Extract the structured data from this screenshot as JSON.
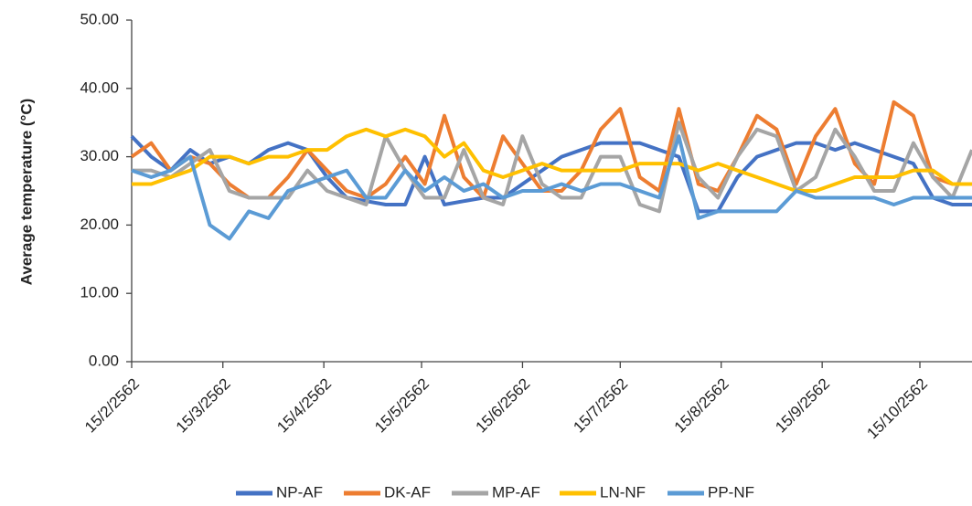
{
  "chart_data": {
    "type": "line",
    "y_label": "Average temperature (°C)",
    "x": [
      "15/2/2562",
      "21/2/2562",
      "27/2/2562",
      "5/3/2562",
      "11/3/2562",
      "17/3/2562",
      "23/3/2562",
      "29/3/2562",
      "4/4/2562",
      "10/4/2562",
      "16/4/2562",
      "22/4/2562",
      "28/4/2562",
      "4/5/2562",
      "10/5/2562",
      "16/5/2562",
      "22/5/2562",
      "28/5/2562",
      "3/6/2562",
      "9/6/2562",
      "15/6/2562",
      "21/6/2562",
      "27/6/2562",
      "3/7/2562",
      "9/7/2562",
      "15/7/2562",
      "21/7/2562",
      "27/7/2562",
      "2/8/2562",
      "8/8/2562",
      "14/8/2562",
      "20/8/2562",
      "26/8/2562",
      "1/9/2562",
      "7/9/2562",
      "13/9/2562",
      "19/9/2562",
      "25/9/2562",
      "1/10/2562",
      "7/10/2562",
      "13/10/2562",
      "19/10/2562",
      "25/10/2562",
      "31/10/2562"
    ],
    "series": [
      {
        "name": "NP-AF",
        "color": "#4472c4",
        "values": [
          33,
          30,
          28,
          31,
          29,
          30,
          29,
          31,
          32,
          31,
          27,
          24,
          23.5,
          23,
          23,
          30,
          23,
          23.5,
          24,
          24,
          26,
          28,
          30,
          31,
          32,
          32,
          32,
          31,
          30,
          22,
          22,
          27,
          30,
          31,
          32,
          32,
          31,
          32,
          31,
          30,
          29,
          24,
          23,
          23
        ]
      },
      {
        "name": "DK-AF",
        "color": "#ed7d31",
        "values": [
          30,
          32,
          28,
          30,
          29,
          26,
          24,
          24,
          27,
          31,
          28,
          25,
          24,
          26,
          30,
          26,
          36,
          27,
          24,
          33,
          29,
          25,
          25,
          28,
          34,
          37,
          27,
          25,
          37,
          26,
          25,
          30,
          36,
          34,
          26,
          33,
          37,
          29,
          26,
          38,
          36,
          27,
          26,
          26
        ]
      },
      {
        "name": "MP-AF",
        "color": "#a5a5a5",
        "values": [
          28,
          28,
          27,
          29,
          31,
          25,
          24,
          24,
          24,
          28,
          25,
          24,
          23,
          33,
          28,
          24,
          24,
          31,
          24,
          23,
          33,
          26,
          24,
          24,
          30,
          30,
          23,
          22,
          35,
          27,
          24,
          30,
          34,
          33,
          25,
          27,
          34,
          30,
          25,
          25,
          32,
          27,
          24,
          31
        ]
      },
      {
        "name": "LN-NF",
        "color": "#ffc000",
        "values": [
          26,
          26,
          27,
          28,
          30,
          30,
          29,
          30,
          30,
          31,
          31,
          33,
          34,
          33,
          34,
          33,
          30,
          32,
          28,
          27,
          28,
          29,
          28,
          28,
          28,
          28,
          29,
          29,
          29,
          28,
          29,
          28,
          27,
          26,
          25,
          25,
          26,
          27,
          27,
          27,
          28,
          28,
          26,
          26
        ]
      },
      {
        "name": "PP-NF",
        "color": "#5b9bd5",
        "values": [
          28,
          27,
          28,
          30,
          20,
          18,
          22,
          21,
          25,
          26,
          27,
          28,
          24,
          24,
          28,
          25,
          27,
          25,
          26,
          24,
          25,
          25,
          26,
          25,
          26,
          26,
          25,
          24,
          33,
          21,
          22,
          22,
          22,
          22,
          25,
          24,
          24,
          24,
          24,
          23,
          24,
          24,
          24,
          24
        ]
      }
    ],
    "xlim": [
      "15/2/2562",
      "31/10/2562"
    ],
    "xticks": [
      "15/2/2562",
      "15/3/2562",
      "15/4/2562",
      "15/5/2562",
      "15/6/2562",
      "15/7/2562",
      "15/8/2562",
      "15/9/2562",
      "15/10/2562"
    ],
    "ylim": [
      0,
      50
    ],
    "yticks": [
      {
        "value": 0,
        "label": "0.00"
      },
      {
        "value": 10,
        "label": "10.00"
      },
      {
        "value": 20,
        "label": "20.00"
      },
      {
        "value": 30,
        "label": "30.00"
      },
      {
        "value": 40,
        "label": "40.00"
      },
      {
        "value": 50,
        "label": "50.00"
      }
    ],
    "grid": false,
    "legend": "bottom"
  }
}
